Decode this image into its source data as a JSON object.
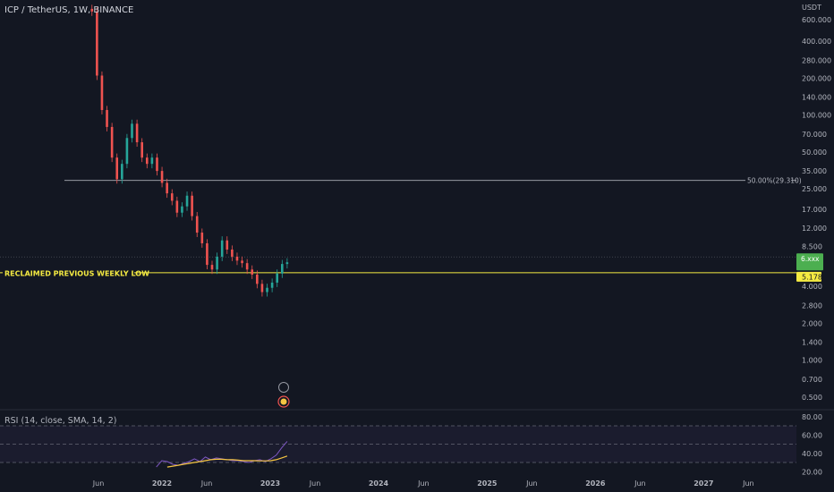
{
  "header": {
    "symbol_label": "ICP / TetherUS, 1W, BINANCE",
    "currency": "USDT"
  },
  "rsi_panel": {
    "label": "RSI (14, close, SMA, 14, 2)"
  },
  "colors": {
    "background": "#131722",
    "up": "#26a69a",
    "down": "#ef5350",
    "hline": "#d1d4dc",
    "support": "#f5eb42",
    "rsi": "#7e57c2",
    "rsi_ma": "#f5c542",
    "price_tag": "#4caf50"
  },
  "chart_data": [
    {
      "type": "candlestick",
      "title": "ICP / TetherUS, 1W, BINANCE",
      "y_scale": "log",
      "y_unit": "USDT",
      "ylim": [
        0.42,
        800
      ],
      "x_ticks": [
        "Jun",
        "2022",
        "Jun",
        "2023",
        "Jun",
        "2024",
        "Jun",
        "2025",
        "Jun",
        "2026",
        "Jun",
        "2027",
        "Jun"
      ],
      "x_tick_dates": [
        "2021-06-01",
        "2022-01-01",
        "2022-06-01",
        "2023-01-01",
        "2023-06-01",
        "2024-01-01",
        "2024-06-01",
        "2025-01-01",
        "2025-06-01",
        "2026-01-01",
        "2026-06-01",
        "2027-01-01",
        "2027-06-01"
      ],
      "y_ticks": [
        "600.000",
        "400.000",
        "280.000",
        "200.000",
        "140.000",
        "100.000",
        "70.000",
        "50.000",
        "35.000",
        "25.000",
        "17.000",
        "12.000",
        "8.500",
        "4.000",
        "2.800",
        "2.000",
        "1.400",
        "1.000",
        "0.700",
        "0.500"
      ],
      "y_tick_values": [
        600,
        400,
        280,
        200,
        140,
        100,
        70,
        50,
        35,
        25,
        17,
        12,
        8.5,
        4,
        2.8,
        2,
        1.4,
        1,
        0.7,
        0.5
      ],
      "hlines": [
        {
          "label": "50.00%(29.310)",
          "value": 29.31
        },
        {
          "label": "RECLAIMED PREVIOUS WEEKLY LOW",
          "value": 5.178
        }
      ],
      "price_tags": [
        {
          "label": "6.xxx",
          "value": 6.3
        },
        {
          "label": "5.178",
          "value": 5.178
        }
      ],
      "closes": [
        700,
        210,
        110,
        80,
        45,
        30,
        40,
        65,
        85,
        60,
        45,
        40,
        45,
        35,
        28,
        23,
        20,
        16,
        18,
        22,
        15,
        11,
        9,
        6,
        5.5,
        7,
        9.5,
        8,
        7,
        6.5,
        6.2,
        5.5,
        5,
        4.2,
        3.6,
        3.9,
        4.3,
        5.1,
        6.1,
        6.3
      ],
      "x_start": "2021-05-10",
      "x_end": "2023-02-27"
    },
    {
      "type": "line",
      "title": "RSI (14, close, SMA, 14, 2)",
      "ylim": [
        18,
        82
      ],
      "y_ticks": [
        "80.00",
        "60.00",
        "40.00",
        "20.00"
      ],
      "y_tick_values": [
        80,
        60,
        40,
        20
      ],
      "bands": [
        70,
        50,
        30
      ],
      "series": [
        {
          "name": "RSI",
          "values": [
            25,
            32,
            31,
            28,
            27,
            29,
            31,
            34,
            31,
            36,
            33,
            35,
            34,
            33,
            32,
            32,
            31,
            30,
            32,
            33,
            31,
            34,
            38,
            46,
            53
          ]
        },
        {
          "name": "RSI-based MA",
          "values": [
            null,
            null,
            25,
            26,
            27,
            28,
            29,
            30,
            31,
            32,
            33,
            33.5,
            33.5,
            33,
            33,
            32.5,
            32,
            32,
            32,
            31.8,
            31.8,
            32,
            33,
            35,
            37
          ]
        }
      ],
      "x_start": "2021-12-13",
      "x_end": "2023-02-27"
    }
  ]
}
